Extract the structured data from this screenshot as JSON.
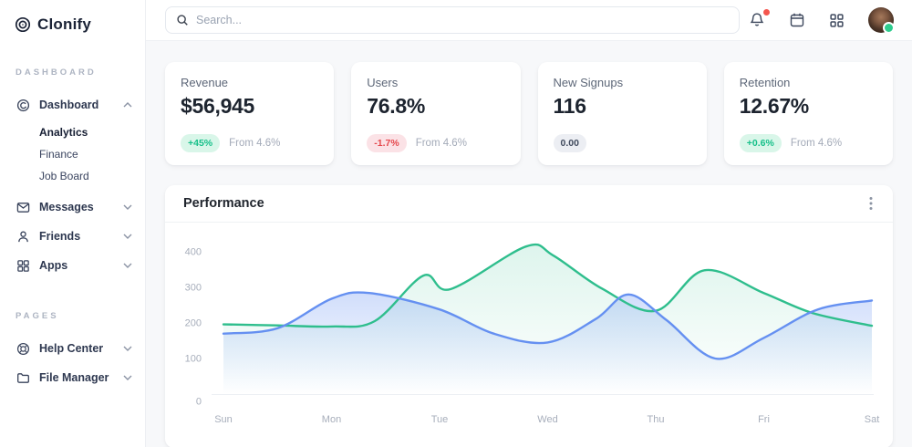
{
  "brand": {
    "name": "Clonify"
  },
  "sidebar": {
    "sections": [
      {
        "label": "DASHBOARD",
        "items": [
          {
            "label": "Dashboard",
            "icon": "dashboard-icon",
            "expanded": true,
            "children": [
              "Analytics",
              "Finance",
              "Job Board"
            ],
            "active_child": "Analytics"
          },
          {
            "label": "Messages",
            "icon": "envelope-icon"
          },
          {
            "label": "Friends",
            "icon": "person-icon"
          },
          {
            "label": "Apps",
            "icon": "grid-icon"
          }
        ]
      },
      {
        "label": "PAGES",
        "items": [
          {
            "label": "Help Center",
            "icon": "life-ring-icon"
          },
          {
            "label": "File Manager",
            "icon": "folder-icon"
          }
        ]
      }
    ]
  },
  "topbar": {
    "search_placeholder": "Search...",
    "has_notification_dot": true
  },
  "stats": [
    {
      "title": "Revenue",
      "value": "$56,945",
      "badge": "+45%",
      "badge_type": "positive",
      "note": "From 4.6%"
    },
    {
      "title": "Users",
      "value": "76.8%",
      "badge": "-1.7%",
      "badge_type": "negative",
      "note": "From 4.6%"
    },
    {
      "title": "New Signups",
      "value": "116",
      "badge": "0.00",
      "badge_type": "neutral",
      "note": ""
    },
    {
      "title": "Retention",
      "value": "12.67%",
      "badge": "+0.6%",
      "badge_type": "positive",
      "note": "From 4.6%"
    }
  ],
  "performance": {
    "title": "Performance"
  },
  "chart_data": {
    "type": "area",
    "title": "Performance",
    "x_labels": [
      "Sun",
      "Mon",
      "Tue",
      "Wed",
      "Thu",
      "Fri",
      "Sat"
    ],
    "y_ticks": [
      0,
      100,
      200,
      300,
      400
    ],
    "ylim": [
      0,
      440
    ],
    "grid": false,
    "legend": "none",
    "series": [
      {
        "name": "series-green",
        "color": "#2fbe8d",
        "fill_top": "rgba(47,190,141,0.16)",
        "fill_bottom": "rgba(47,190,141,0)",
        "points": [
          [
            0,
            196
          ],
          [
            0.5,
            193
          ],
          [
            1,
            190
          ],
          [
            1.4,
            205
          ],
          [
            1.85,
            333
          ],
          [
            2.1,
            295
          ],
          [
            2.8,
            415
          ],
          [
            3.05,
            390
          ],
          [
            3.5,
            297
          ],
          [
            4,
            234
          ],
          [
            4.45,
            348
          ],
          [
            5,
            284
          ],
          [
            5.45,
            228
          ],
          [
            6,
            192
          ]
        ]
      },
      {
        "name": "series-blue",
        "color": "#6590f1",
        "fill_top": "rgba(101,144,241,0.30)",
        "fill_bottom": "rgba(101,144,241,0)",
        "points": [
          [
            0,
            170
          ],
          [
            0.5,
            185
          ],
          [
            1,
            268
          ],
          [
            1.35,
            284
          ],
          [
            2,
            238
          ],
          [
            2.5,
            170
          ],
          [
            3,
            145
          ],
          [
            3.45,
            212
          ],
          [
            3.75,
            280
          ],
          [
            4.1,
            208
          ],
          [
            4.55,
            100
          ],
          [
            5,
            158
          ],
          [
            5.5,
            238
          ],
          [
            6,
            263
          ]
        ]
      }
    ]
  }
}
